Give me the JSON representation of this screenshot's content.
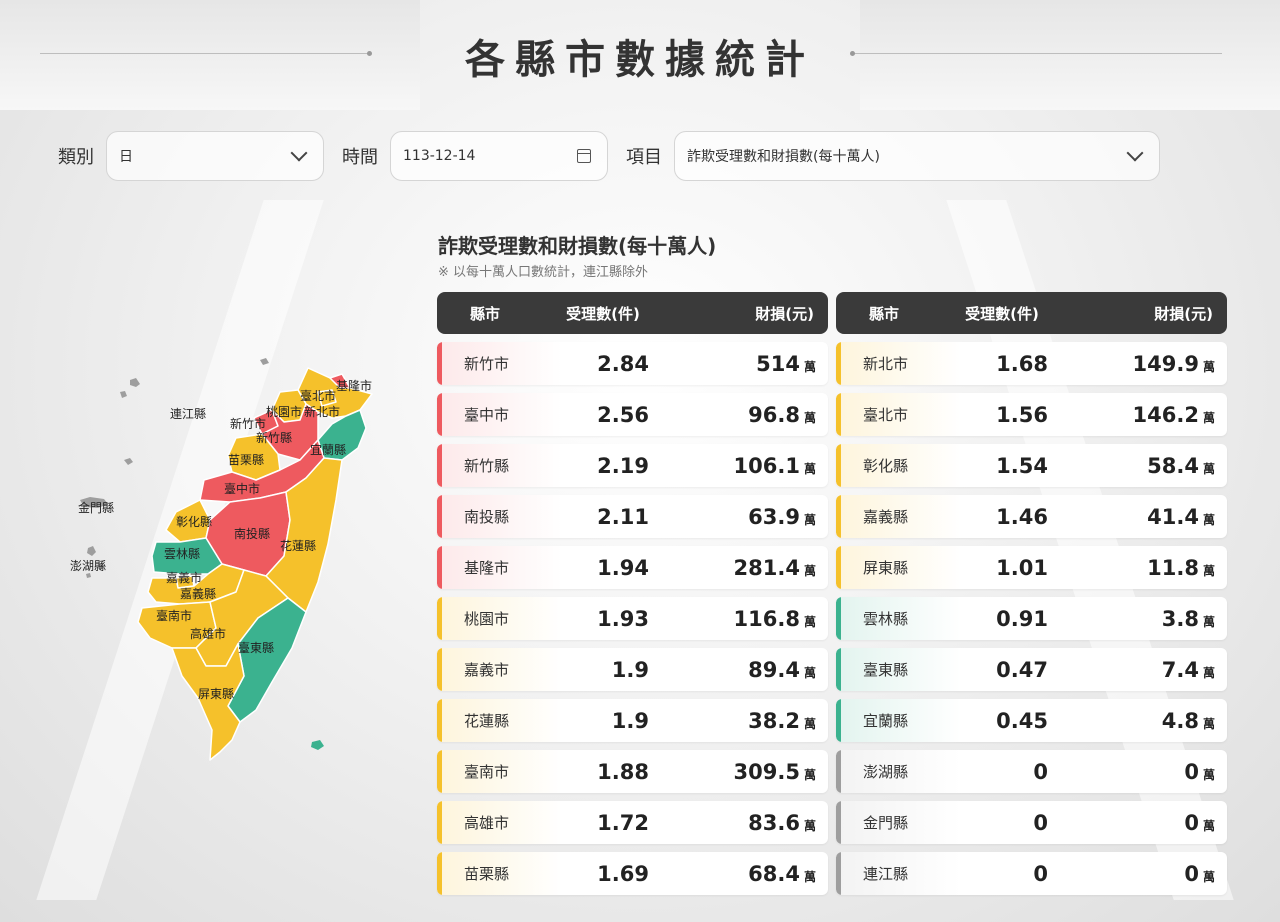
{
  "page": {
    "title": "各縣市數據統計"
  },
  "filters": {
    "category_label": "類別",
    "category_value": "日",
    "time_label": "時間",
    "time_value": "113-12-14",
    "item_label": "項目",
    "item_value": "詐欺受理數和財損數(每十萬人)"
  },
  "section": {
    "title": "詐欺受理數和財損數(每十萬人)",
    "note": "※ 以每十萬人口數統計，連江縣除外"
  },
  "table_headers": {
    "county": "縣市",
    "cases": "受理數(件)",
    "loss": "財損(元)"
  },
  "unit": "萬",
  "status_colors": {
    "red": "#ee5a5f",
    "yellow": "#f5c12b",
    "green": "#3bb28f",
    "gray": "#9e9e9e"
  },
  "left_rows": [
    {
      "county": "新竹市",
      "cases": "2.84",
      "loss": "514",
      "level": "red"
    },
    {
      "county": "臺中市",
      "cases": "2.56",
      "loss": "96.8",
      "level": "red"
    },
    {
      "county": "新竹縣",
      "cases": "2.19",
      "loss": "106.1",
      "level": "red"
    },
    {
      "county": "南投縣",
      "cases": "2.11",
      "loss": "63.9",
      "level": "red"
    },
    {
      "county": "基隆市",
      "cases": "1.94",
      "loss": "281.4",
      "level": "red"
    },
    {
      "county": "桃園市",
      "cases": "1.93",
      "loss": "116.8",
      "level": "yellow"
    },
    {
      "county": "嘉義市",
      "cases": "1.9",
      "loss": "89.4",
      "level": "yellow"
    },
    {
      "county": "花蓮縣",
      "cases": "1.9",
      "loss": "38.2",
      "level": "yellow"
    },
    {
      "county": "臺南市",
      "cases": "1.88",
      "loss": "309.5",
      "level": "yellow"
    },
    {
      "county": "高雄市",
      "cases": "1.72",
      "loss": "83.6",
      "level": "yellow"
    },
    {
      "county": "苗栗縣",
      "cases": "1.69",
      "loss": "68.4",
      "level": "yellow"
    }
  ],
  "right_rows": [
    {
      "county": "新北市",
      "cases": "1.68",
      "loss": "149.9",
      "level": "yellow"
    },
    {
      "county": "臺北市",
      "cases": "1.56",
      "loss": "146.2",
      "level": "yellow"
    },
    {
      "county": "彰化縣",
      "cases": "1.54",
      "loss": "58.4",
      "level": "yellow"
    },
    {
      "county": "嘉義縣",
      "cases": "1.46",
      "loss": "41.4",
      "level": "yellow"
    },
    {
      "county": "屏東縣",
      "cases": "1.01",
      "loss": "11.8",
      "level": "yellow"
    },
    {
      "county": "雲林縣",
      "cases": "0.91",
      "loss": "3.8",
      "level": "green"
    },
    {
      "county": "臺東縣",
      "cases": "0.47",
      "loss": "7.4",
      "level": "green"
    },
    {
      "county": "宜蘭縣",
      "cases": "0.45",
      "loss": "4.8",
      "level": "green"
    },
    {
      "county": "澎湖縣",
      "cases": "0",
      "loss": "0",
      "level": "gray"
    },
    {
      "county": "金門縣",
      "cases": "0",
      "loss": "0",
      "level": "gray"
    },
    {
      "county": "連江縣",
      "cases": "0",
      "loss": "0",
      "level": "gray"
    }
  ],
  "map_labels": {
    "keelung": "基隆市",
    "taipei": "臺北市",
    "new_taipei": "新北市",
    "taoyuan": "桃園市",
    "hsinchu_city": "新竹市",
    "hsinchu_county": "新竹縣",
    "yilan": "宜蘭縣",
    "miaoli": "苗栗縣",
    "taichung": "臺中市",
    "changhua": "彰化縣",
    "nantou": "南投縣",
    "hualien": "花蓮縣",
    "yunlin": "雲林縣",
    "chiayi_city": "嘉義市",
    "chiayi_county": "嘉義縣",
    "tainan": "臺南市",
    "kaohsiung": "高雄市",
    "taitung": "臺東縣",
    "pingtung": "屏東縣",
    "lienchiang": "連江縣",
    "kinmen": "金門縣",
    "penghu": "澎湖縣"
  }
}
